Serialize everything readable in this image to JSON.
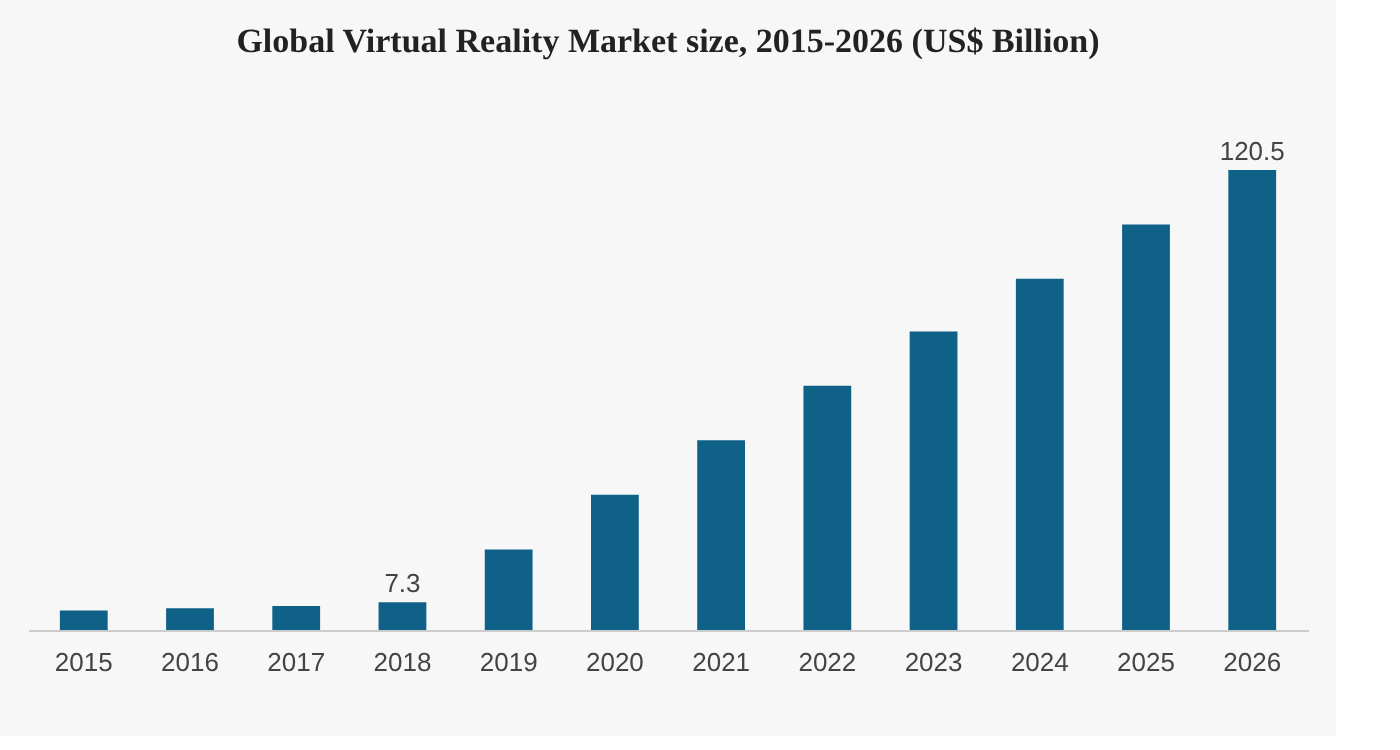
{
  "chart_data": {
    "type": "bar",
    "title": "Global Virtual Reality Market size, 2015-2026 (US$ Billion)",
    "categories": [
      "2015",
      "2016",
      "2017",
      "2018",
      "2019",
      "2020",
      "2021",
      "2022",
      "2023",
      "2024",
      "2025",
      "2026"
    ],
    "values": [
      5.1,
      5.7,
      6.3,
      7.3,
      21.1,
      35.4,
      49.7,
      64.0,
      78.2,
      92.0,
      106.2,
      120.5
    ],
    "value_labels": [
      null,
      null,
      null,
      "7.3",
      null,
      null,
      null,
      null,
      null,
      null,
      null,
      "120.5"
    ],
    "color": "#0f6187",
    "grid": false
  }
}
